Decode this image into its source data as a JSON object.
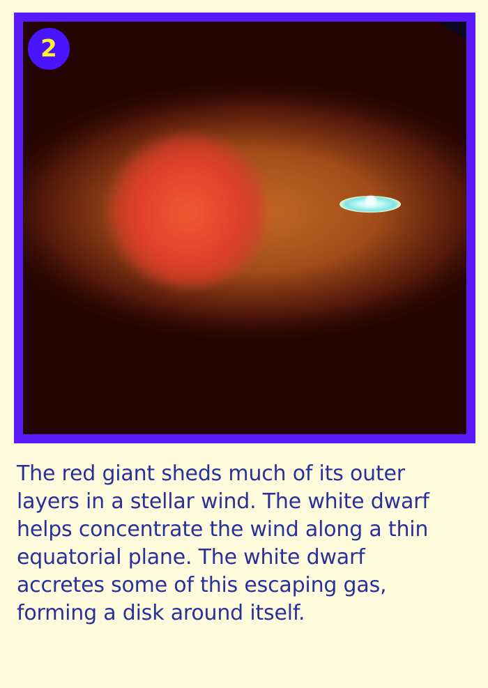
{
  "step_number": "2",
  "caption": "The red giant sheds much of its outer\nlayers in a stellar wind. The white dwarf\nhelps concentrate the wind along a thin\nequatorial plane. The white dwarf\naccretes some of this escaping gas,\nforming a disk around itself.",
  "colors": {
    "background": "#fdfbdc",
    "frame_border": "#5a1aff",
    "badge_fill": "#4a14ff",
    "badge_text": "#fff22c",
    "caption_text": "#2b2f9a",
    "space": "#240400",
    "red_giant": "#e8452a",
    "stellar_wind": "#b25a1e",
    "accretion_disk": "#8ef0f0"
  }
}
